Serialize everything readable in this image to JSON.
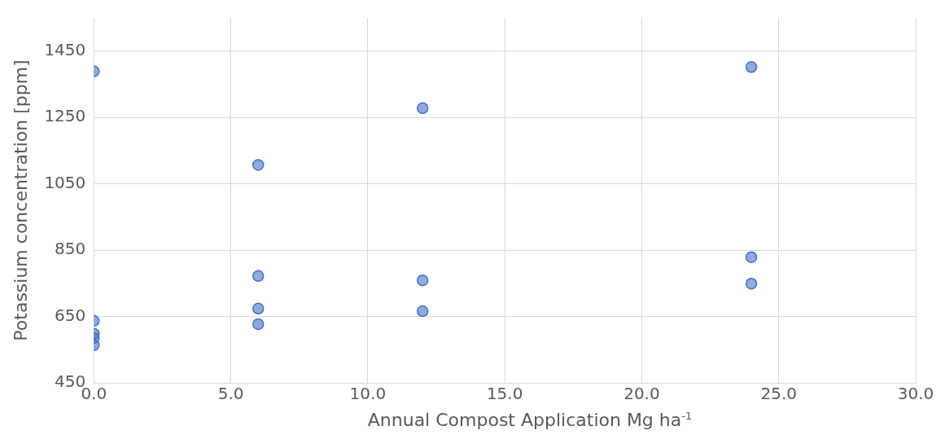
{
  "chart_data": {
    "type": "scatter",
    "xlabel": "Annual Compost Application Mg ha$^{-1}$",
    "ylabel": "Potassium concentration [ppm]",
    "x": [
      0,
      0,
      0,
      0,
      0,
      6,
      6,
      6,
      6,
      12,
      12,
      12,
      24,
      24,
      24
    ],
    "series": [
      {
        "color": "#4472c4",
        "values": [
          1389,
          637,
          598,
          585,
          564,
          1107,
          772,
          674,
          627,
          1278,
          759,
          666,
          1402,
          829,
          749
        ]
      }
    ],
    "xlim": [
      0,
      30
    ],
    "xticks": [
      {
        "value": 0,
        "label": "0.0"
      },
      {
        "value": 5,
        "label": "5.0"
      },
      {
        "value": 10,
        "label": "10.0"
      },
      {
        "value": 15,
        "label": "15.0"
      },
      {
        "value": 20,
        "label": "20.0"
      },
      {
        "value": 25,
        "label": "25.0"
      },
      {
        "value": 30,
        "label": "30.0"
      }
    ],
    "ylim": [
      450,
      1550
    ],
    "yticks": [
      450,
      650,
      850,
      1050,
      1250,
      1450
    ],
    "grid": true,
    "legend": false,
    "marker": "circle"
  }
}
